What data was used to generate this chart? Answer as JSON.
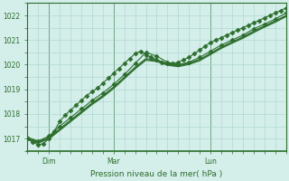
{
  "bg_color": "#d4eeea",
  "grid_color": "#a8d4cc",
  "line_color": "#2d6e2d",
  "title": "Pression niveau de la mer( hPa )",
  "ylim": [
    1016.6,
    1022.4
  ],
  "xlim": [
    0,
    48
  ],
  "yticks": [
    1017,
    1018,
    1019,
    1020,
    1021,
    1022
  ],
  "xtick_positions": [
    4,
    16,
    34
  ],
  "xtick_labels": [
    "Dim",
    "Mar",
    "Lun"
  ],
  "vline_positions": [
    4,
    16,
    34
  ],
  "lines": [
    {
      "x": [
        0,
        1,
        2,
        3,
        4,
        5,
        6,
        7,
        8,
        9,
        10,
        11,
        12,
        13,
        14,
        15,
        16,
        17,
        18,
        19,
        20,
        21,
        22,
        23,
        24,
        25,
        26,
        27,
        28,
        29,
        30,
        31,
        32,
        33,
        34,
        35,
        36,
        37,
        38,
        39,
        40,
        41,
        42,
        43,
        44,
        45,
        46,
        47,
        48
      ],
      "y": [
        1017.0,
        1016.85,
        1016.75,
        1016.8,
        1017.0,
        1017.3,
        1017.7,
        1017.95,
        1018.15,
        1018.35,
        1018.55,
        1018.75,
        1018.9,
        1019.05,
        1019.25,
        1019.45,
        1019.65,
        1019.85,
        1020.05,
        1020.25,
        1020.45,
        1020.55,
        1020.4,
        1020.3,
        1020.2,
        1020.1,
        1020.05,
        1020.05,
        1020.1,
        1020.2,
        1020.3,
        1020.45,
        1020.6,
        1020.75,
        1020.9,
        1021.0,
        1021.1,
        1021.2,
        1021.3,
        1021.4,
        1021.5,
        1021.6,
        1021.7,
        1021.8,
        1021.9,
        1022.0,
        1022.1,
        1022.2,
        1022.3
      ],
      "marker": "D",
      "markersize": 2.5,
      "linewidth": 0.8
    },
    {
      "x": [
        0,
        2,
        4,
        6,
        8,
        10,
        12,
        14,
        16,
        18,
        20,
        22,
        24,
        26,
        28,
        30,
        32,
        34,
        36,
        38,
        40,
        42,
        44,
        46,
        48
      ],
      "y": [
        1017.05,
        1016.9,
        1017.1,
        1017.5,
        1017.85,
        1018.2,
        1018.55,
        1018.85,
        1019.2,
        1019.6,
        1020.05,
        1020.5,
        1020.35,
        1020.1,
        1020.0,
        1020.1,
        1020.3,
        1020.55,
        1020.8,
        1021.0,
        1021.2,
        1021.45,
        1021.65,
        1021.85,
        1022.1
      ],
      "marker": "D",
      "markersize": 2.5,
      "linewidth": 0.8
    },
    {
      "x": [
        0,
        2,
        4,
        6,
        8,
        10,
        12,
        14,
        16,
        18,
        20,
        22,
        24,
        26,
        28,
        30,
        32,
        34,
        36,
        38,
        40,
        42,
        44,
        46,
        48
      ],
      "y": [
        1017.02,
        1016.88,
        1017.05,
        1017.4,
        1017.75,
        1018.1,
        1018.45,
        1018.75,
        1019.1,
        1019.5,
        1019.9,
        1020.25,
        1020.2,
        1020.05,
        1019.98,
        1020.07,
        1020.22,
        1020.47,
        1020.72,
        1020.93,
        1021.13,
        1021.37,
        1021.58,
        1021.78,
        1022.0
      ],
      "marker": null,
      "markersize": 0,
      "linewidth": 0.8
    },
    {
      "x": [
        0,
        2,
        4,
        6,
        8,
        10,
        12,
        14,
        16,
        18,
        20,
        22,
        24,
        26,
        28,
        30,
        32,
        34,
        36,
        38,
        40,
        42,
        44,
        46,
        48
      ],
      "y": [
        1016.95,
        1016.82,
        1016.98,
        1017.33,
        1017.68,
        1018.03,
        1018.38,
        1018.68,
        1019.03,
        1019.43,
        1019.83,
        1020.18,
        1020.13,
        1019.98,
        1019.92,
        1020.01,
        1020.16,
        1020.41,
        1020.66,
        1020.87,
        1021.07,
        1021.3,
        1021.52,
        1021.72,
        1021.95
      ],
      "marker": null,
      "markersize": 0,
      "linewidth": 0.8
    },
    {
      "x": [
        0,
        2,
        4,
        6,
        8,
        10,
        12,
        14,
        16,
        18,
        20,
        22,
        24,
        26,
        28,
        30,
        32,
        34,
        36,
        38,
        40,
        42,
        44,
        46,
        48
      ],
      "y": [
        1016.98,
        1016.85,
        1017.01,
        1017.36,
        1017.71,
        1018.06,
        1018.41,
        1018.71,
        1019.06,
        1019.46,
        1019.86,
        1020.21,
        1020.16,
        1020.01,
        1019.95,
        1020.04,
        1020.19,
        1020.44,
        1020.69,
        1020.9,
        1021.1,
        1021.33,
        1021.55,
        1021.75,
        1021.97
      ],
      "marker": null,
      "markersize": 0,
      "linewidth": 0.8
    }
  ]
}
